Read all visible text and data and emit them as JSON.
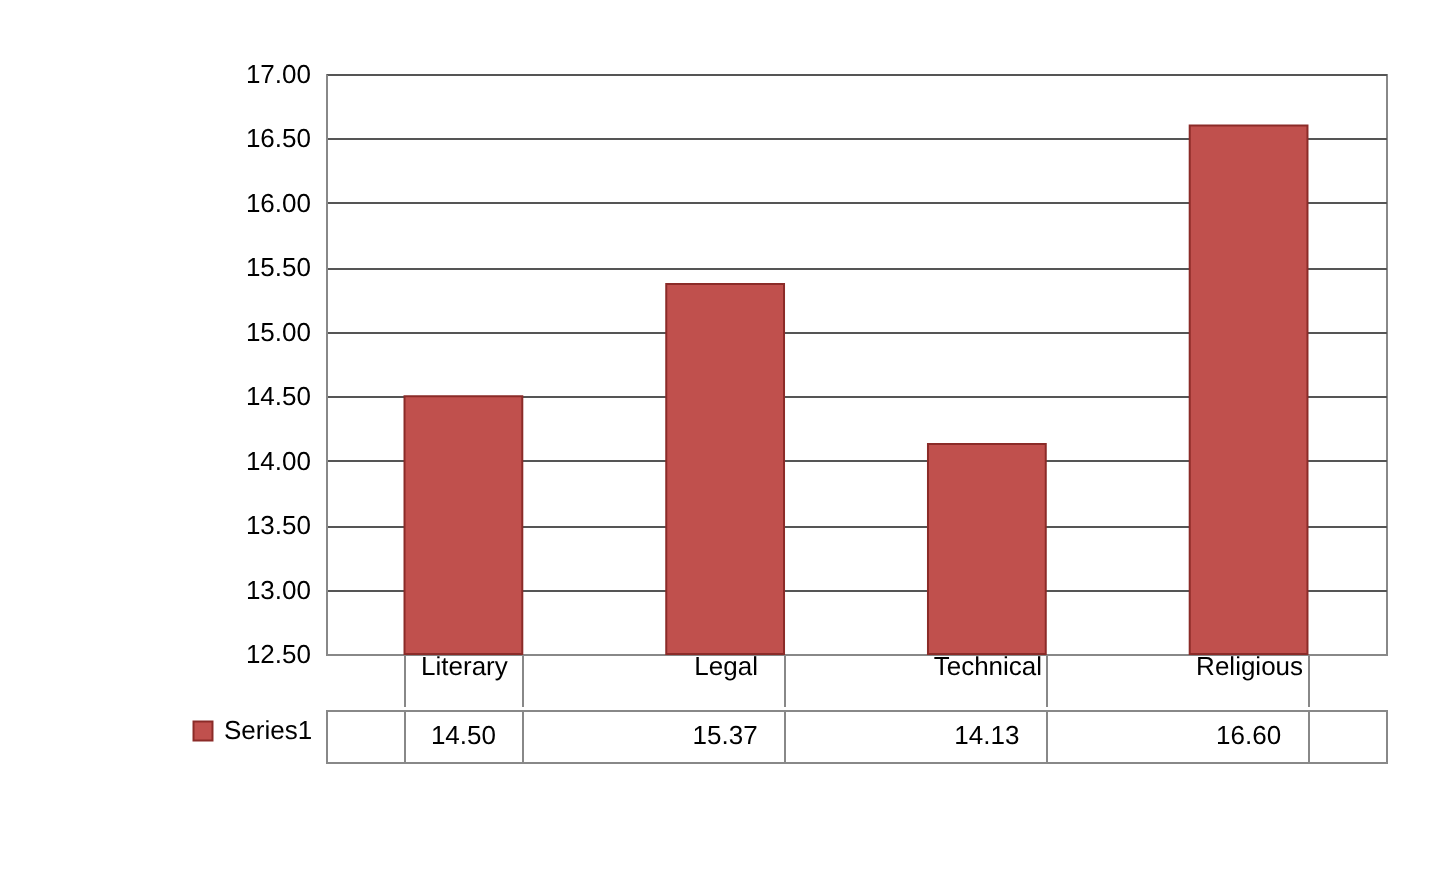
{
  "chart_data": {
    "type": "bar",
    "categories": [
      "Literary",
      "Legal",
      "Technical",
      "Religious"
    ],
    "series": [
      {
        "name": "Series1",
        "color": "#c0504d",
        "values": [
          14.5,
          15.37,
          14.13,
          16.6
        ],
        "value_labels": [
          "14.50",
          "15.37",
          "14.13",
          "16.60"
        ]
      }
    ],
    "ylim": [
      12.5,
      17
    ],
    "yticks": [
      {
        "value": 12.5,
        "label": "12.50"
      },
      {
        "value": 13,
        "label": "13.00"
      },
      {
        "value": 13.5,
        "label": "13.50"
      },
      {
        "value": 14,
        "label": "14.00"
      },
      {
        "value": 14.5,
        "label": "14.50"
      },
      {
        "value": 15,
        "label": "15.00"
      },
      {
        "value": 15.5,
        "label": "15.50"
      },
      {
        "value": 16,
        "label": "16.00"
      },
      {
        "value": 16.5,
        "label": "16.50"
      },
      {
        "value": 17,
        "label": "17.00"
      }
    ],
    "grid": true,
    "legend": "bottom"
  }
}
